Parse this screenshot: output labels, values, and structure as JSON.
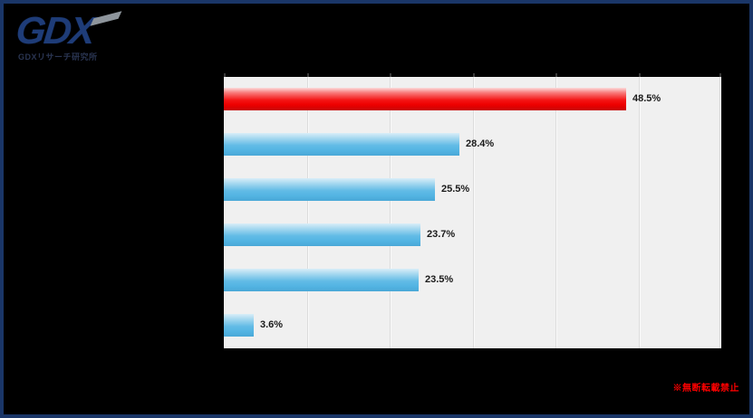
{
  "canvas": {
    "background": "#000000",
    "border_color": "#1a3668"
  },
  "logo": {
    "text": "GDX",
    "subtitle": "GDXリサーチ研究所",
    "navy": "#1e3c78",
    "accent_gray": "#8e959c"
  },
  "footer": {
    "notice": "※無断転載禁止",
    "color": "#fe0000"
  },
  "chart_data": {
    "type": "bar",
    "orientation": "horizontal",
    "title": "",
    "xlabel": "",
    "ylabel": "",
    "categories": [
      "",
      "",
      "",
      "",
      "",
      ""
    ],
    "values": [
      48.5,
      28.4,
      25.5,
      23.7,
      23.5,
      3.6
    ],
    "data_labels": [
      "48.5%",
      "28.4%",
      "25.5%",
      "23.7%",
      "23.5%",
      "3.6%"
    ],
    "bar_styles": [
      "highlight",
      "normal",
      "normal",
      "normal",
      "normal",
      "normal"
    ],
    "highlight_color": "#ee0000",
    "bar_color": "#54b5e3",
    "xlim": [
      0,
      60
    ],
    "grid_interval": 10,
    "grid_on": true,
    "plot_background": "#f0f0f0",
    "grid_color": "#dcdcdc",
    "legend": "none"
  }
}
